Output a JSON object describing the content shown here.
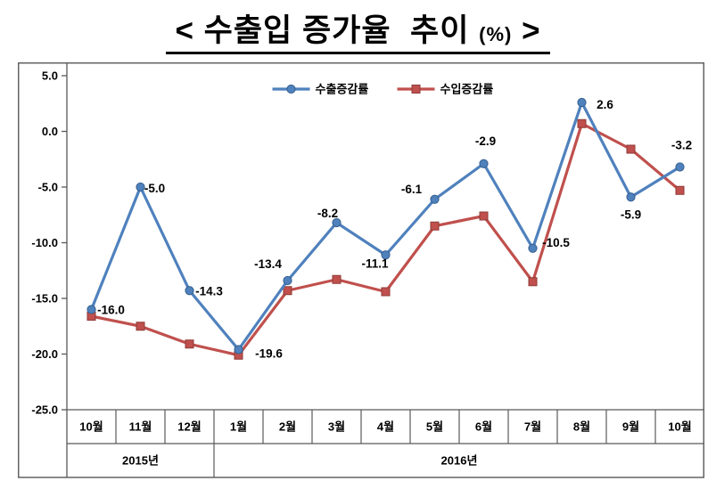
{
  "title": {
    "prefix": "< 수출입 증가율  추이 ",
    "unit": "(%)",
    "suffix": " >"
  },
  "chart_data": {
    "type": "line",
    "title": "수출입 증가율 추이 (%)",
    "categories": [
      "10월",
      "11월",
      "12월",
      "1월",
      "2월",
      "3월",
      "4월",
      "5월",
      "6월",
      "7월",
      "8월",
      "9월",
      "10월"
    ],
    "year_groups": [
      {
        "label": "2015년",
        "span": 3
      },
      {
        "label": "2016년",
        "span": 10
      }
    ],
    "yticks": [
      5,
      0,
      -5,
      -10,
      -15,
      -20,
      -25
    ],
    "ylim": [
      -25,
      5
    ],
    "grid": false,
    "legend_position": "top",
    "label_color": "#17375E",
    "series": [
      {
        "name": "수출증감률",
        "color": "#4F81BD",
        "edge": "#36608F",
        "marker": "circle",
        "values": [
          -16.0,
          -5.0,
          -14.3,
          -19.6,
          -13.4,
          -8.2,
          -11.1,
          -6.1,
          -2.9,
          -10.5,
          2.6,
          -5.9,
          -3.2
        ],
        "labels": [
          "-16.0",
          "-5.0",
          "-14.3",
          "-19.6",
          "-13.4",
          "-8.2",
          "-11.1",
          "-6.1",
          "-2.9",
          "-10.5",
          "2.6",
          "-5.9",
          "-3.2"
        ],
        "label_offsets": [
          [
            22,
            5
          ],
          [
            16,
            6
          ],
          [
            22,
            5
          ],
          [
            34,
            9
          ],
          [
            -22,
            -14
          ],
          [
            -10,
            -6
          ],
          [
            -12,
            14
          ],
          [
            -26,
            -7
          ],
          [
            2,
            -21
          ],
          [
            26,
            -2
          ],
          [
            26,
            7
          ],
          [
            0,
            24
          ],
          [
            2,
            -20
          ]
        ]
      },
      {
        "name": "수입증감률",
        "color": "#C0504D",
        "edge": "#8E3A37",
        "marker": "square",
        "values": [
          -16.6,
          -17.5,
          -19.1,
          -20.1,
          -14.3,
          -13.3,
          -14.4,
          -8.5,
          -7.6,
          -13.5,
          0.7,
          -1.6,
          -5.3
        ]
      }
    ]
  }
}
